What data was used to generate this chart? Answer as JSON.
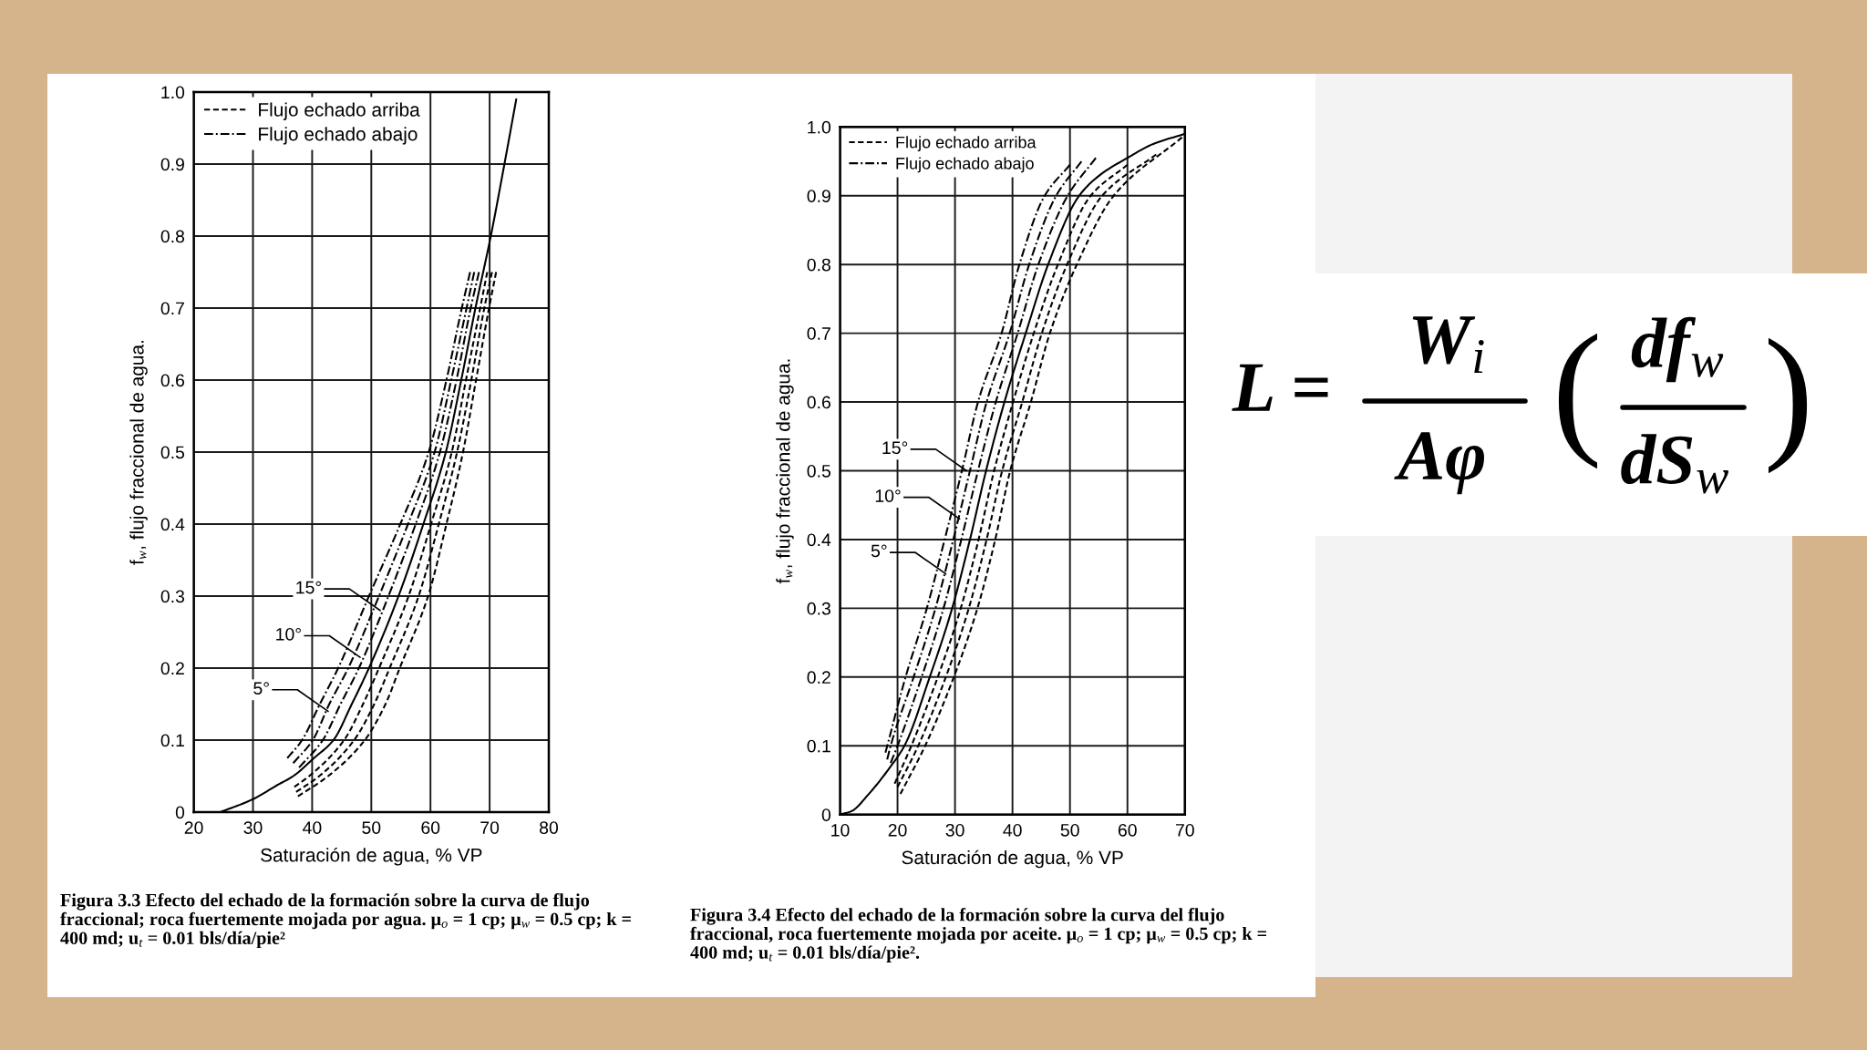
{
  "chart_data": [
    {
      "type": "line",
      "xlabel": "Saturación de agua, % VP",
      "ylabel": "f$_{w}$, flujo fraccional de agua.",
      "xlim": [
        20,
        80
      ],
      "ylim": [
        0,
        1.0
      ],
      "xticks": [
        20,
        30,
        40,
        50,
        60,
        70,
        80
      ],
      "yticks": [
        0,
        0.1,
        0.2,
        0.3,
        0.4,
        0.5,
        0.6,
        0.7,
        0.8,
        0.9,
        {
          "value": 1,
          "label": "1.0"
        }
      ],
      "grid": true,
      "legend": "top left",
      "series": [
        {
          "color": "#000000",
          "line_style": "solid",
          "x": [
            24.5,
            30,
            34,
            36.8,
            40.3,
            43.6,
            46.7,
            49.6,
            54.6,
            58.8,
            62.6,
            65.2,
            67.6,
            70.2,
            72.5,
            74.5
          ],
          "values": [
            0,
            0.018,
            0.037,
            0.05,
            0.075,
            0.1,
            0.15,
            0.2,
            0.3,
            0.4,
            0.5,
            0.6,
            0.7,
            0.8,
            0.9,
            0.99
          ]
        },
        {
          "name": "Flujo echado arriba",
          "color": "#000000",
          "line_style": "dashed",
          "x": [
            37,
            39.5,
            45.4,
            48.6,
            51.3,
            56.3,
            60.1,
            63.6,
            66.0,
            68.4,
            69.6
          ],
          "values": [
            0.035,
            0.05,
            0.1,
            0.15,
            0.2,
            0.3,
            0.4,
            0.5,
            0.6,
            0.7,
            0.75
          ]
        },
        {
          "color": "#000000",
          "line_style": "dashed",
          "x": [
            37.3,
            41.2,
            47.1,
            50.5,
            53.1,
            58.0,
            61.4,
            64.5,
            66.9,
            69.1,
            70.4
          ],
          "values": [
            0.028,
            0.05,
            0.1,
            0.15,
            0.2,
            0.3,
            0.4,
            0.5,
            0.6,
            0.7,
            0.75
          ]
        },
        {
          "color": "#000000",
          "line_style": "dashed",
          "x": [
            37.6,
            42.7,
            48.9,
            52.4,
            54.8,
            59.6,
            62.7,
            65.5,
            67.7,
            69.9,
            71.1
          ],
          "values": [
            0.022,
            0.05,
            0.1,
            0.15,
            0.2,
            0.3,
            0.4,
            0.5,
            0.6,
            0.7,
            0.75
          ]
        },
        {
          "name": "Flujo echado abajo",
          "color": "#000000",
          "line_style": "dashdot",
          "x": [
            37.8,
            41.8,
            44.8,
            47.9,
            52.9,
            57.5,
            61.6,
            64.4,
            66.8,
            68.2
          ],
          "values": [
            0.062,
            0.1,
            0.15,
            0.2,
            0.3,
            0.4,
            0.5,
            0.6,
            0.7,
            0.75
          ]
        },
        {
          "color": "#000000",
          "line_style": "dashdot",
          "x": [
            36.8,
            40.1,
            42.9,
            46.1,
            51.3,
            56.2,
            60.7,
            63.5,
            66.1,
            67.4
          ],
          "values": [
            0.068,
            0.1,
            0.15,
            0.2,
            0.3,
            0.4,
            0.5,
            0.6,
            0.7,
            0.75
          ]
        },
        {
          "color": "#000000",
          "line_style": "dashdot",
          "x": [
            35.8,
            38.3,
            41.3,
            44.4,
            49.6,
            54.9,
            59.7,
            62.7,
            65.3,
            66.7
          ],
          "values": [
            0.075,
            0.1,
            0.15,
            0.2,
            0.3,
            0.4,
            0.5,
            0.6,
            0.7,
            0.75
          ]
        }
      ],
      "annotations": [
        {
          "text": "15°",
          "x": 51.5,
          "y": 0.28
        },
        {
          "text": "10°",
          "x": 48.1,
          "y": 0.215
        },
        {
          "text": "5°",
          "x": 42.7,
          "y": 0.14
        },
        "Figura 3.3 Efecto del echado de la formación sobre la curva de flujo fraccional; roca fuertemente mojada por agua. μ$_{o}$ = 1 cp; μ$_{w}$ = 0.5 cp; k = 400 md; u$_{t}$ = 0.01 bls/día/pie²"
      ]
    },
    {
      "type": "line",
      "xlabel": "Saturación de agua, % VP",
      "ylabel": "f$_{w}$, flujo fraccional de agua.",
      "xlim": [
        10,
        70
      ],
      "ylim": [
        0,
        1.0
      ],
      "xticks": [
        10,
        20,
        30,
        40,
        50,
        60,
        70
      ],
      "yticks": [
        0,
        0.1,
        0.2,
        0.3,
        0.4,
        0.5,
        0.6,
        0.7,
        0.8,
        0.9,
        {
          "value": 1,
          "label": "1.0"
        }
      ],
      "grid": true,
      "legend": "top left",
      "series": [
        {
          "color": "#000000",
          "line_style": "solid",
          "x": [
            10,
            12,
            15,
            18.8,
            21.2,
            25.6,
            29.5,
            32.6,
            35.4,
            38.6,
            42.3,
            46.2,
            51.6,
            55.2,
            60,
            64.4,
            70
          ],
          "values": [
            0,
            0.005,
            0.03,
            0.07,
            0.1,
            0.2,
            0.3,
            0.4,
            0.5,
            0.6,
            0.7,
            0.8,
            0.9,
            0.93,
            0.955,
            0.975,
            0.99
          ]
        },
        {
          "name": "Flujo echado arriba",
          "color": "#000000",
          "line_style": "dashed",
          "x": [
            19.5,
            22.4,
            27.0,
            31.0,
            34.1,
            36.8,
            40.1,
            43.7,
            47.9,
            53.6,
            60
          ],
          "values": [
            0.045,
            0.1,
            0.2,
            0.3,
            0.4,
            0.5,
            0.6,
            0.7,
            0.8,
            0.9,
            0.945
          ]
        },
        {
          "color": "#000000",
          "line_style": "dashed",
          "x": [
            20,
            23.6,
            28.4,
            32.4,
            35.5,
            38.2,
            41.7,
            45.1,
            49.5,
            55.6,
            65
          ],
          "values": [
            0.04,
            0.1,
            0.2,
            0.3,
            0.4,
            0.5,
            0.6,
            0.7,
            0.8,
            0.9,
            0.96
          ]
        },
        {
          "color": "#000000",
          "line_style": "dashed",
          "x": [
            20.5,
            24.8,
            29.8,
            33.9,
            37.0,
            39.6,
            43.2,
            46.5,
            51.2,
            57.6,
            69.5
          ],
          "values": [
            0.03,
            0.1,
            0.2,
            0.3,
            0.4,
            0.5,
            0.6,
            0.7,
            0.8,
            0.9,
            0.985
          ]
        },
        {
          "name": "Flujo echado abajo",
          "color": "#000000",
          "line_style": "dashdot",
          "x": [
            18.8,
            20.0,
            24.2,
            28.0,
            31.1,
            34.0,
            37.1,
            40.9,
            44.5,
            49.6,
            54.5
          ],
          "values": [
            0.075,
            0.1,
            0.2,
            0.3,
            0.4,
            0.5,
            0.6,
            0.7,
            0.8,
            0.9,
            0.955
          ]
        },
        {
          "color": "#000000",
          "line_style": "dashdot",
          "x": [
            18.2,
            18.8,
            22.8,
            26.6,
            29.7,
            32.6,
            35.5,
            39.5,
            42.9,
            47.6,
            52
          ],
          "values": [
            0.08,
            0.1,
            0.2,
            0.3,
            0.4,
            0.5,
            0.6,
            0.7,
            0.8,
            0.9,
            0.95
          ]
        },
        {
          "color": "#000000",
          "line_style": "dashdot",
          "x": [
            17.9,
            21.4,
            25.1,
            28.2,
            31.2,
            34.0,
            38.1,
            41.2,
            45.6,
            50.0
          ],
          "values": [
            0.09,
            0.2,
            0.3,
            0.4,
            0.5,
            0.6,
            0.7,
            0.8,
            0.9,
            0.945
          ]
        }
      ],
      "annotations": [
        {
          "text": "15°",
          "x": 32,
          "y": 0.5
        },
        {
          "text": "10°",
          "x": 30.8,
          "y": 0.43
        },
        {
          "text": "5°",
          "x": 28.4,
          "y": 0.35
        },
        "Figura 3.4 Efecto del echado de la formación sobre la curva del flujo fraccional, roca fuertemente mojada por aceite. μ$_{o}$ = 1 cp; μ$_{w}$ = 0.5 cp; k = 400 md; u$_{t}$ = 0.01 bls/día/pie²."
      ]
    },
    {
      "type": "other",
      "annotations": [
        "L =",
        "W$_{i}$",
        "Aφ",
        "(",
        "df$_{w}$",
        "dS$_{w}$",
        ")"
      ]
    }
  ]
}
